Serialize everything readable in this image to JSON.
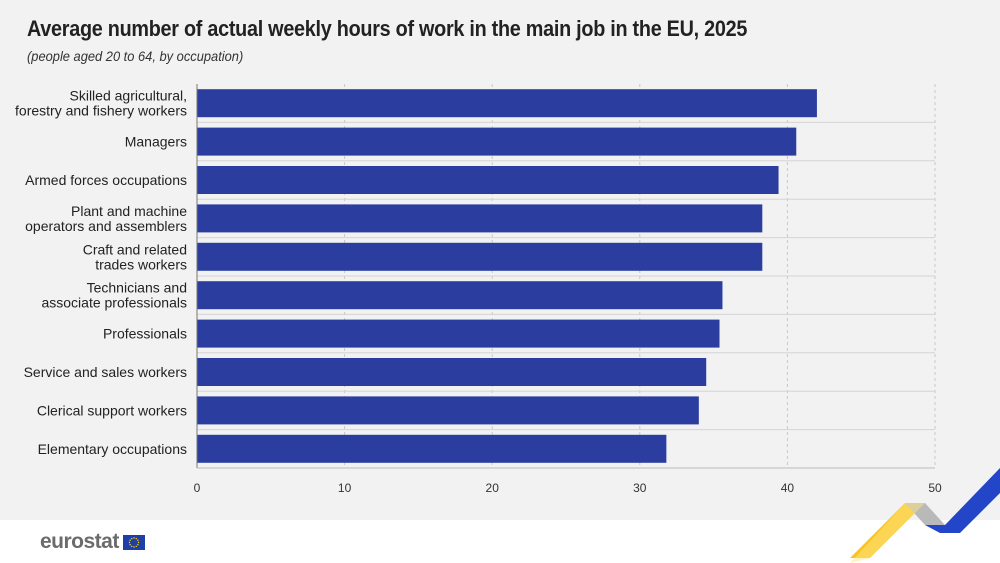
{
  "header": {
    "title": "Average number of actual weekly hours of work in the main job in the EU, 2025",
    "subtitle": "(people aged 20 to 64, by occupation)"
  },
  "footer": {
    "logo_text": "eurostat",
    "flag_icon": "eu-flag-icon",
    "decoration_icon": "eurostat-ribbon-icon"
  },
  "colors": {
    "bar": "#2b3e9f",
    "background": "#f2f2f2",
    "logo_text": "#6b6b6b",
    "ribbon_blue": "#2346c8",
    "ribbon_yellow": "#f5c11a"
  },
  "chart_data": {
    "type": "bar",
    "orientation": "horizontal",
    "categories": [
      [
        "Skilled agricultural,",
        "forestry and fishery workers"
      ],
      [
        "Managers"
      ],
      [
        "Armed forces occupations"
      ],
      [
        "Plant and machine",
        "operators and assemblers"
      ],
      [
        "Craft and related",
        "trades workers"
      ],
      [
        "Technicians and",
        "associate professionals"
      ],
      [
        "Professionals"
      ],
      [
        "Service and sales workers"
      ],
      [
        "Clerical support workers"
      ],
      [
        "Elementary occupations"
      ]
    ],
    "values": [
      42.0,
      40.6,
      39.4,
      38.3,
      38.3,
      35.6,
      35.4,
      34.5,
      34.0,
      31.8
    ],
    "xlim": [
      0,
      50
    ],
    "x_ticks": [
      "0",
      "10",
      "20",
      "30",
      "40",
      "50"
    ],
    "grid": true,
    "xlabel": "",
    "ylabel": ""
  }
}
